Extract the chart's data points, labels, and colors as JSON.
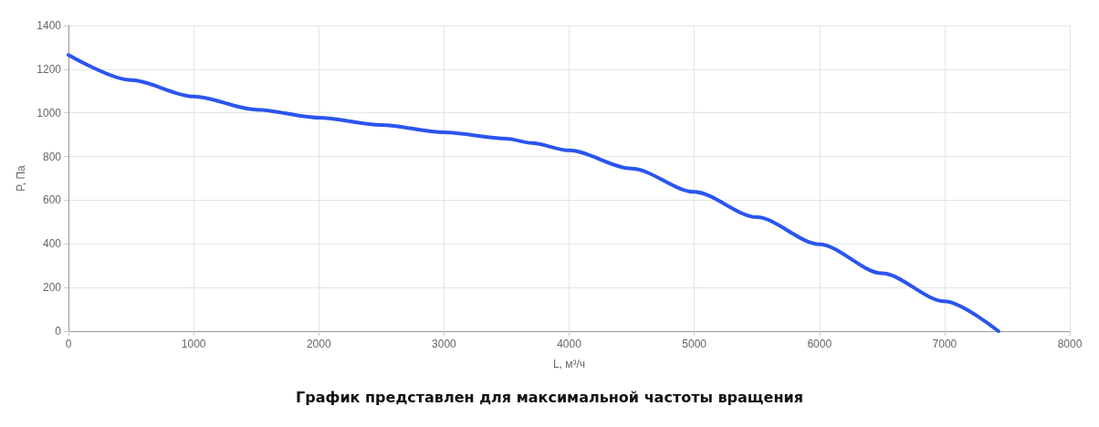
{
  "chart_data": {
    "type": "line",
    "xlabel": "L, м³/ч",
    "ylabel": "P, Па",
    "annotations": [
      "График представлен для максимальной частоты вращения"
    ],
    "x": [
      0,
      500,
      1000,
      1500,
      2000,
      2500,
      3000,
      3500,
      3700,
      4000,
      4500,
      5000,
      5500,
      6000,
      6500,
      7000,
      7430
    ],
    "series": [
      {
        "color": "#2a55ee",
        "values": [
          1265,
          1150,
          1075,
          1015,
          978,
          945,
          911,
          882,
          862,
          828,
          745,
          638,
          522,
          398,
          265,
          137,
          0
        ]
      }
    ],
    "xlim": [
      0,
      8000
    ],
    "xticks": [
      0,
      1000,
      2000,
      3000,
      4000,
      5000,
      6000,
      7000,
      8000
    ],
    "ylim": [
      0,
      1400
    ],
    "yticks": [
      0,
      200,
      400,
      600,
      800,
      1000,
      1200,
      1400
    ],
    "grid": true,
    "marker": "none",
    "line_style": "solid"
  }
}
